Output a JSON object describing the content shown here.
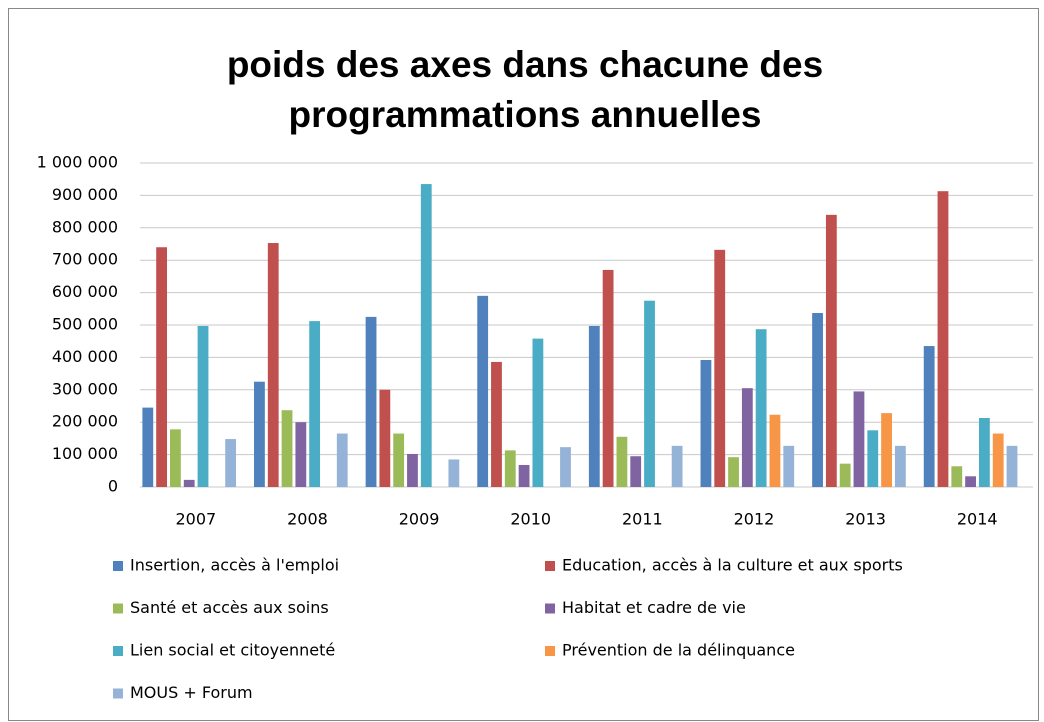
{
  "chart_data": {
    "type": "bar",
    "title": "poids des axes dans chacune des programmations annuelles",
    "categories": [
      "2007",
      "2008",
      "2009",
      "2010",
      "2011",
      "2012",
      "2013",
      "2014"
    ],
    "series": [
      {
        "name": "Insertion, accès à l'emploi",
        "color": "#4f81bd",
        "values": [
          245000,
          325000,
          525000,
          590000,
          497000,
          392000,
          537000,
          435000
        ]
      },
      {
        "name": "Education, accès à la culture et aux sports",
        "color": "#c0504d",
        "values": [
          740000,
          753000,
          300000,
          386000,
          670000,
          732000,
          840000,
          913000
        ]
      },
      {
        "name": "Santé et accès aux soins",
        "color": "#9bbb59",
        "values": [
          178000,
          237000,
          165000,
          113000,
          155000,
          92000,
          72000,
          64000
        ]
      },
      {
        "name": "Habitat et cadre de vie",
        "color": "#8064a2",
        "values": [
          22000,
          200000,
          102000,
          68000,
          95000,
          305000,
          295000,
          33000
        ]
      },
      {
        "name": "Lien social et citoyenneté",
        "color": "#4bacc6",
        "values": [
          497000,
          512000,
          935000,
          458000,
          575000,
          487000,
          175000,
          213000
        ]
      },
      {
        "name": "Prévention de la délinquance",
        "color": "#f79646",
        "values": [
          null,
          null,
          null,
          null,
          null,
          223000,
          228000,
          165000
        ]
      },
      {
        "name": "MOUS + Forum",
        "color": "#95b3d7",
        "values": [
          148000,
          165000,
          85000,
          123000,
          127000,
          127000,
          127000,
          127000
        ]
      }
    ],
    "ylim": [
      0,
      1000000
    ],
    "yticks": [
      0,
      {
        "value": 100000,
        "label": "100 000"
      },
      {
        "value": 200000,
        "label": "200 000"
      },
      {
        "value": 300000,
        "label": "300 000"
      },
      {
        "value": 400000,
        "label": "400 000"
      },
      {
        "value": 500000,
        "label": "500 000"
      },
      {
        "value": 600000,
        "label": "600 000"
      },
      {
        "value": 700000,
        "label": "700 000"
      },
      {
        "value": 800000,
        "label": "800 000"
      },
      {
        "value": 900000,
        "label": "900 000"
      },
      {
        "value": 1000000,
        "label": "1 000 000"
      }
    ],
    "grid": true
  }
}
